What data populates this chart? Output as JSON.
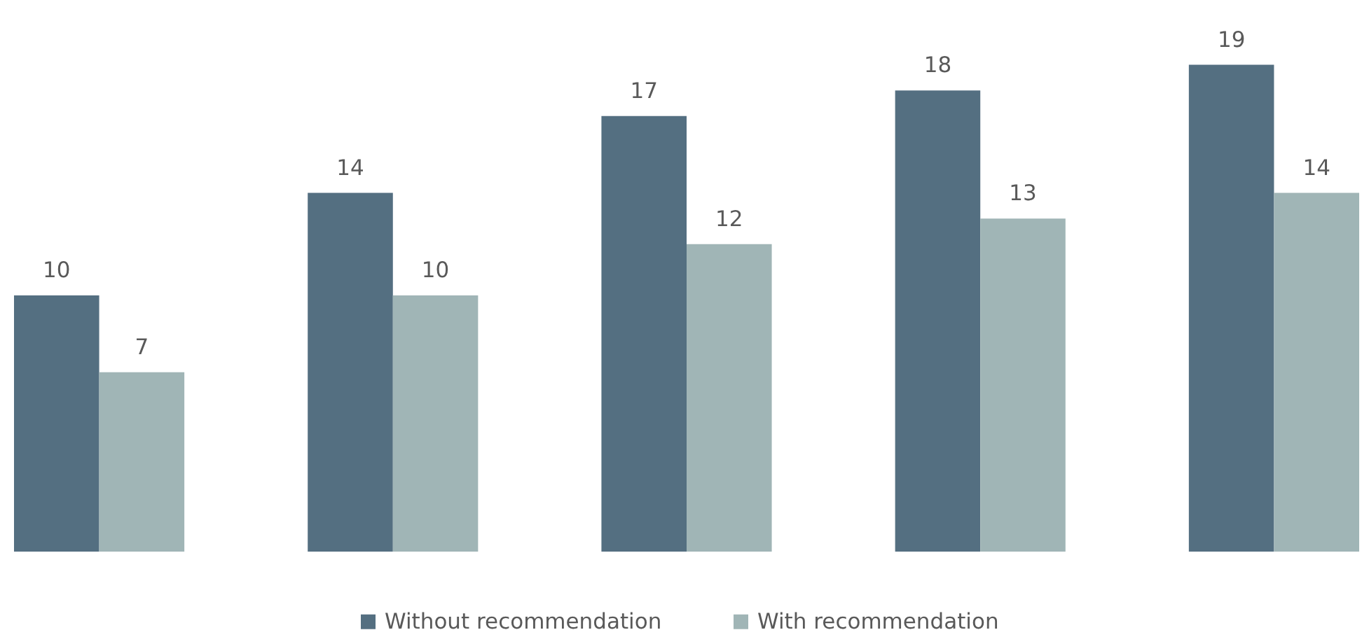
{
  "chart_data": {
    "type": "bar",
    "categories": [
      null,
      null,
      null,
      null,
      null
    ],
    "series": [
      {
        "name": "Without recommendation",
        "color": "#546f81",
        "values": [
          10,
          14,
          17,
          18,
          19
        ]
      },
      {
        "name": "With recommendation",
        "color": "#a0b5b6",
        "values": [
          7,
          10,
          12,
          13,
          14
        ]
      }
    ],
    "data_labels": true,
    "legend": "bottom"
  }
}
